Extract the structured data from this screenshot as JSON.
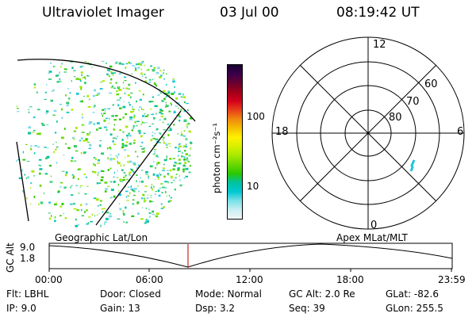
{
  "header": {
    "title": "Ultraviolet Imager",
    "date": "03 Jul 00",
    "time": "08:19:42 UT"
  },
  "colorbar": {
    "unit_label": "photon cm⁻²s⁻¹",
    "ticks": [
      "100",
      "10"
    ],
    "colors": [
      "#1a0033",
      "#3a004a",
      "#6a0030",
      "#a00018",
      "#d2001a",
      "#e8401a",
      "#f08a10",
      "#f5c000",
      "#fff100",
      "#d8f000",
      "#a8e800",
      "#6ad800",
      "#2cc800",
      "#00c2a0",
      "#00c8d0",
      "#78e0e8",
      "#c8eef2",
      "#f0f6f8"
    ]
  },
  "polar": {
    "labels": {
      "top": "12",
      "bottom": "0",
      "left": "18",
      "right": "6"
    },
    "rings": [
      "60",
      "70",
      "80"
    ],
    "accent": "#22c6d6"
  },
  "timeline": {
    "left_label": "Geographic Lat/Lon",
    "right_label": "Apex MLat/MLT",
    "axis_label": "GC Alt",
    "y_ticks": [
      "9.0",
      "1.8"
    ],
    "x_ticks": [
      "00:00",
      "06:00",
      "12:00",
      "18:00",
      "23:59"
    ],
    "marker_color": "#c0281e"
  },
  "info": {
    "flt": "Flt: LBHL",
    "ip": "IP:  9.0",
    "door": "Door: Closed",
    "gain": "Gain: 13",
    "mode": "Mode:  Normal",
    "dsp": "Dsp:      3.2",
    "gcalt": "GC Alt: 2.0 Re",
    "seq": "Seq: 39",
    "glat": "GLat:  -82.6",
    "glon": "GLon:  255.5"
  }
}
